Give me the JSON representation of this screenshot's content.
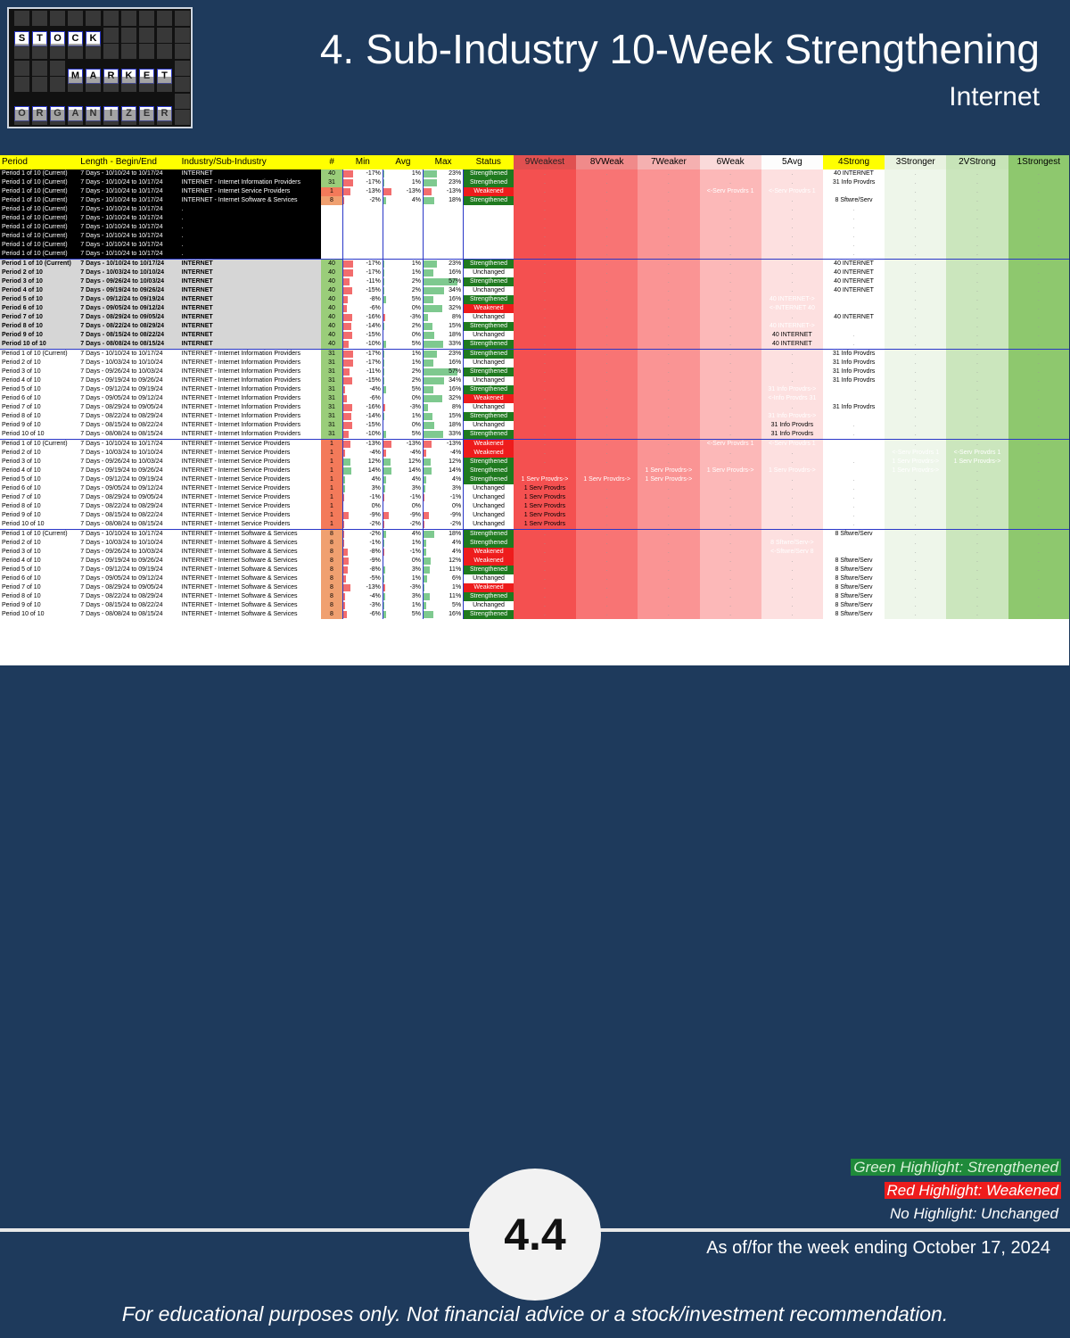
{
  "header": {
    "title": "4. Sub-Industry 10-Week Strengthening",
    "subtitle": "Internet",
    "logo_words": [
      "STOCK",
      "MARKET",
      "ORGANIZER"
    ]
  },
  "table": {
    "columns": [
      "Period",
      "Length - Begin/End",
      "Industry/Sub-Industry",
      "#",
      "Min",
      "Avg",
      "Max",
      "Status",
      "9Weakest",
      "8VWeak",
      "7Weaker",
      "6Weak",
      "5Avg",
      "4Strong",
      "3Stronger",
      "2VStrong",
      "1Strongest"
    ],
    "rows": [
      {
        "p": "Period 1 of 10 (Current)",
        "l": "7 Days - 10/10/24 to 10/17/24",
        "i": "INTERNET",
        "n": "40",
        "mn": "-17%",
        "av": "1%",
        "mx": "23%",
        "s": "Strengthened",
        "z": {
          "4": "40 INTERNET"
        },
        "g": "blk"
      },
      {
        "p": "Period 1 of 10 (Current)",
        "l": "7 Days - 10/10/24 to 10/17/24",
        "i": "INTERNET - Internet Information Providers",
        "n": "31",
        "mn": "-17%",
        "av": "1%",
        "mx": "23%",
        "s": "Strengthened",
        "z": {
          "4": "31 Info Provdrs"
        },
        "g": "blk"
      },
      {
        "p": "Period 1 of 10 (Current)",
        "l": "7 Days - 10/10/24 to 10/17/24",
        "i": "INTERNET - Internet Service Providers",
        "n": "1",
        "mn": "-13%",
        "av": "-13%",
        "mx": "-13%",
        "s": "Weakened",
        "z": {
          "6": "<-Serv Provdrs 1|r",
          "5": "<-Serv Provdrs 1|r",
          "4": "<-Serv Provdrs 1|r"
        },
        "g": "blk"
      },
      {
        "p": "Period 1 of 10 (Current)",
        "l": "7 Days - 10/10/24 to 10/17/24",
        "i": "INTERNET - Internet Software & Services",
        "n": "8",
        "mn": "-2%",
        "av": "4%",
        "mx": "18%",
        "s": "Strengthened",
        "z": {
          "4": "8 Sftwre/Serv"
        },
        "g": "blk"
      },
      {
        "p": "Period 1 of 10 (Current)",
        "l": "7 Days - 10/10/24 to 10/17/24",
        "i": ".",
        "n": "",
        "mn": "",
        "av": "",
        "mx": "",
        "s": "",
        "z": {},
        "g": "blk"
      },
      {
        "p": "Period 1 of 10 (Current)",
        "l": "7 Days - 10/10/24 to 10/17/24",
        "i": ".",
        "n": "",
        "mn": "",
        "av": "",
        "mx": "",
        "s": "",
        "z": {},
        "g": "blk"
      },
      {
        "p": "Period 1 of 10 (Current)",
        "l": "7 Days - 10/10/24 to 10/17/24",
        "i": ".",
        "n": "",
        "mn": "",
        "av": "",
        "mx": "",
        "s": "",
        "z": {},
        "g": "blk"
      },
      {
        "p": "Period 1 of 10 (Current)",
        "l": "7 Days - 10/10/24 to 10/17/24",
        "i": ".",
        "n": "",
        "mn": "",
        "av": "",
        "mx": "",
        "s": "",
        "z": {},
        "g": "blk"
      },
      {
        "p": "Period 1 of 10 (Current)",
        "l": "7 Days - 10/10/24 to 10/17/24",
        "i": ".",
        "n": "",
        "mn": "",
        "av": "",
        "mx": "",
        "s": "",
        "z": {},
        "g": "blk"
      },
      {
        "p": "Period 1 of 10 (Current)",
        "l": "7 Days - 10/10/24 to 10/17/24",
        "i": ".",
        "n": "",
        "mn": "",
        "av": "",
        "mx": "",
        "s": "",
        "z": {},
        "g": "blk"
      },
      {
        "p": "Period 1 of 10 (Current)",
        "l": "7 Days - 10/10/24 to 10/17/24",
        "i": "INTERNET",
        "n": "40",
        "mn": "-17%",
        "av": "1%",
        "mx": "23%",
        "s": "Strengthened",
        "z": {
          "4": "40 INTERNET"
        },
        "g": "gry",
        "sep": true
      },
      {
        "p": "Period 2 of 10",
        "l": "7 Days - 10/03/24 to 10/10/24",
        "i": "INTERNET",
        "n": "40",
        "mn": "-17%",
        "av": "1%",
        "mx": "16%",
        "s": "Unchanged",
        "z": {
          "4": "40 INTERNET"
        },
        "g": "gry"
      },
      {
        "p": "Period 3 of 10",
        "l": "7 Days - 09/26/24 to 10/03/24",
        "i": "INTERNET",
        "n": "40",
        "mn": "-11%",
        "av": "2%",
        "mx": "57%",
        "s": "Strengthened",
        "z": {
          "4": "40 INTERNET"
        },
        "g": "gry"
      },
      {
        "p": "Period 4 of 10",
        "l": "7 Days - 09/19/24 to 09/26/24",
        "i": "INTERNET",
        "n": "40",
        "mn": "-15%",
        "av": "2%",
        "mx": "34%",
        "s": "Unchanged",
        "z": {
          "4": "40 INTERNET"
        },
        "g": "gry"
      },
      {
        "p": "Period 5 of 10",
        "l": "7 Days - 09/12/24 to 09/19/24",
        "i": "INTERNET",
        "n": "40",
        "mn": "-8%",
        "av": "5%",
        "mx": "16%",
        "s": "Strengthened",
        "z": {
          "5": "40 INTERNET->|g",
          "4": "40 INTERNET->|g"
        },
        "g": "gry"
      },
      {
        "p": "Period 6 of 10",
        "l": "7 Days - 09/05/24 to 09/12/24",
        "i": "INTERNET",
        "n": "40",
        "mn": "-6%",
        "av": "0%",
        "mx": "32%",
        "s": "Weakened",
        "z": {
          "5": "<-INTERNET 40|r",
          "4": "<-INTERNET 40|r"
        },
        "g": "gry"
      },
      {
        "p": "Period 7 of 10",
        "l": "7 Days - 08/29/24 to 09/05/24",
        "i": "INTERNET",
        "n": "40",
        "mn": "-16%",
        "av": "-3%",
        "mx": "8%",
        "s": "Unchanged",
        "z": {
          "4": "40 INTERNET"
        },
        "g": "gry"
      },
      {
        "p": "Period 8 of 10",
        "l": "7 Days - 08/22/24 to 08/29/24",
        "i": "INTERNET",
        "n": "40",
        "mn": "-14%",
        "av": "2%",
        "mx": "15%",
        "s": "Strengthened",
        "z": {
          "5": "40 INTERNET->|g",
          "4": "40 INTERNET->|g"
        },
        "g": "gry"
      },
      {
        "p": "Period 9 of 10",
        "l": "7 Days - 08/15/24 to 08/22/24",
        "i": "INTERNET",
        "n": "40",
        "mn": "-15%",
        "av": "0%",
        "mx": "18%",
        "s": "Unchanged",
        "z": {
          "5": "40 INTERNET"
        },
        "g": "gry"
      },
      {
        "p": "Period 10 of 10",
        "l": "7 Days - 08/08/24 to 08/15/24",
        "i": "INTERNET",
        "n": "40",
        "mn": "-10%",
        "av": "5%",
        "mx": "33%",
        "s": "Strengthened",
        "z": {
          "5": "40 INTERNET"
        },
        "g": "gry"
      },
      {
        "p": "Period 1 of 10 (Current)",
        "l": "7 Days - 10/10/24 to 10/17/24",
        "i": "INTERNET - Internet Information Providers",
        "n": "31",
        "mn": "-17%",
        "av": "1%",
        "mx": "23%",
        "s": "Strengthened",
        "z": {
          "4": "31 Info Provdrs"
        },
        "g": "wht",
        "sep": true
      },
      {
        "p": "Period 2 of 10",
        "l": "7 Days - 10/03/24 to 10/10/24",
        "i": "INTERNET - Internet Information Providers",
        "n": "31",
        "mn": "-17%",
        "av": "1%",
        "mx": "16%",
        "s": "Unchanged",
        "z": {
          "4": "31 Info Provdrs"
        },
        "g": "wht"
      },
      {
        "p": "Period 3 of 10",
        "l": "7 Days - 09/26/24 to 10/03/24",
        "i": "INTERNET - Internet Information Providers",
        "n": "31",
        "mn": "-11%",
        "av": "2%",
        "mx": "57%",
        "s": "Strengthened",
        "z": {
          "4": "31 Info Provdrs"
        },
        "g": "wht"
      },
      {
        "p": "Period 4 of 10",
        "l": "7 Days - 09/19/24 to 09/26/24",
        "i": "INTERNET - Internet Information Providers",
        "n": "31",
        "mn": "-15%",
        "av": "2%",
        "mx": "34%",
        "s": "Unchanged",
        "z": {
          "4": "31 Info Provdrs"
        },
        "g": "wht"
      },
      {
        "p": "Period 5 of 10",
        "l": "7 Days - 09/12/24 to 09/19/24",
        "i": "INTERNET - Internet Information Providers",
        "n": "31",
        "mn": "-4%",
        "av": "5%",
        "mx": "16%",
        "s": "Strengthened",
        "z": {
          "5": "31 Info Provdrs->|g",
          "4": "31 Info Provdrs->|g"
        },
        "g": "wht"
      },
      {
        "p": "Period 6 of 10",
        "l": "7 Days - 09/05/24 to 09/12/24",
        "i": "INTERNET - Internet Information Providers",
        "n": "31",
        "mn": "-6%",
        "av": "0%",
        "mx": "32%",
        "s": "Weakened",
        "z": {
          "5": "<-Info Provdrs 31|r",
          "4": "<-Info Provdrs 31|r"
        },
        "g": "wht"
      },
      {
        "p": "Period 7 of 10",
        "l": "7 Days - 08/29/24 to 09/05/24",
        "i": "INTERNET - Internet Information Providers",
        "n": "31",
        "mn": "-16%",
        "av": "-3%",
        "mx": "8%",
        "s": "Unchanged",
        "z": {
          "4": "31 Info Provdrs"
        },
        "g": "wht"
      },
      {
        "p": "Period 8 of 10",
        "l": "7 Days - 08/22/24 to 08/29/24",
        "i": "INTERNET - Internet Information Providers",
        "n": "31",
        "mn": "-14%",
        "av": "1%",
        "mx": "15%",
        "s": "Strengthened",
        "z": {
          "5": "31 Info Provdrs->|g",
          "4": "31 Info Provdrs->|g"
        },
        "g": "wht"
      },
      {
        "p": "Period 9 of 10",
        "l": "7 Days - 08/15/24 to 08/22/24",
        "i": "INTERNET - Internet Information Providers",
        "n": "31",
        "mn": "-15%",
        "av": "0%",
        "mx": "18%",
        "s": "Unchanged",
        "z": {
          "5": "31 Info Provdrs"
        },
        "g": "wht"
      },
      {
        "p": "Period 10 of 10",
        "l": "7 Days - 08/08/24 to 08/15/24",
        "i": "INTERNET - Internet Information Providers",
        "n": "31",
        "mn": "-10%",
        "av": "5%",
        "mx": "33%",
        "s": "Strengthened",
        "z": {
          "5": "31 Info Provdrs"
        },
        "g": "wht"
      },
      {
        "p": "Period 1 of 10 (Current)",
        "l": "7 Days - 10/10/24 to 10/17/24",
        "i": "INTERNET - Internet Service Providers",
        "n": "1",
        "mn": "-13%",
        "av": "-13%",
        "mx": "-13%",
        "s": "Weakened",
        "z": {
          "6": "<-Serv Provdrs 1|r",
          "5": "<-Serv Provdrs 1|r",
          "4": "<-Serv Provdrs 1|r"
        },
        "g": "wht",
        "sep": true
      },
      {
        "p": "Period 2 of 10",
        "l": "7 Days - 10/03/24 to 10/10/24",
        "i": "INTERNET - Internet Service Providers",
        "n": "1",
        "mn": "-4%",
        "av": "-4%",
        "mx": "-4%",
        "s": "Weakened",
        "z": {
          "4": "<-Serv Provdrs 1|r",
          "3": "<-Serv Provdrs 1|b",
          "2": "<-Serv Provdrs 1|b"
        },
        "g": "wht"
      },
      {
        "p": "Period 3 of 10",
        "l": "7 Days - 09/26/24 to 10/03/24",
        "i": "INTERNET - Internet Service Providers",
        "n": "1",
        "mn": "12%",
        "av": "12%",
        "mx": "12%",
        "s": "Strengthened",
        "z": {
          "3": "1 Serv Provdrs->|g",
          "2": "1 Serv Provdrs->|g"
        },
        "g": "wht"
      },
      {
        "p": "Period 4 of 10",
        "l": "7 Days - 09/19/24 to 09/26/24",
        "i": "INTERNET - Internet Service Providers",
        "n": "1",
        "mn": "14%",
        "av": "14%",
        "mx": "14%",
        "s": "Strengthened",
        "z": {
          "7": "1 Serv Provdrs->|g",
          "6": "1 Serv Provdrs->|g",
          "5": "1 Serv Provdrs->|g",
          "4": "1 Serv Provdrs->|g",
          "3": "1 Serv Provdrs->|g"
        },
        "g": "wht"
      },
      {
        "p": "Period 5 of 10",
        "l": "7 Days - 09/12/24 to 09/19/24",
        "i": "INTERNET - Internet Service Providers",
        "n": "1",
        "mn": "4%",
        "av": "4%",
        "mx": "4%",
        "s": "Strengthened",
        "z": {
          "9": "1 Serv Provdrs->|b",
          "8": "1 Serv Provdrs->|b",
          "7": "1 Serv Provdrs->|b"
        },
        "g": "wht"
      },
      {
        "p": "Period 6 of 10",
        "l": "7 Days - 09/05/24 to 09/12/24",
        "i": "INTERNET - Internet Service Providers",
        "n": "1",
        "mn": "3%",
        "av": "3%",
        "mx": "3%",
        "s": "Unchanged",
        "z": {
          "9": "1 Serv Provdrs"
        },
        "g": "wht"
      },
      {
        "p": "Period 7 of 10",
        "l": "7 Days - 08/29/24 to 09/05/24",
        "i": "INTERNET - Internet Service Providers",
        "n": "1",
        "mn": "-1%",
        "av": "-1%",
        "mx": "-1%",
        "s": "Unchanged",
        "z": {
          "9": "1 Serv Provdrs"
        },
        "g": "wht"
      },
      {
        "p": "Period 8 of 10",
        "l": "7 Days - 08/22/24 to 08/29/24",
        "i": "INTERNET - Internet Service Providers",
        "n": "1",
        "mn": "0%",
        "av": "0%",
        "mx": "0%",
        "s": "Unchanged",
        "z": {
          "9": "1 Serv Provdrs"
        },
        "g": "wht"
      },
      {
        "p": "Period 9 of 10",
        "l": "7 Days - 08/15/24 to 08/22/24",
        "i": "INTERNET - Internet Service Providers",
        "n": "1",
        "mn": "-9%",
        "av": "-9%",
        "mx": "-9%",
        "s": "Unchanged",
        "z": {
          "9": "1 Serv Provdrs"
        },
        "g": "wht"
      },
      {
        "p": "Period 10 of 10",
        "l": "7 Days - 08/08/24 to 08/15/24",
        "i": "INTERNET - Internet Service Providers",
        "n": "1",
        "mn": "-2%",
        "av": "-2%",
        "mx": "-2%",
        "s": "Unchanged",
        "z": {
          "9": "1 Serv Provdrs"
        },
        "g": "wht"
      },
      {
        "p": "Period 1 of 10 (Current)",
        "l": "7 Days - 10/10/24 to 10/17/24",
        "i": "INTERNET - Internet Software & Services",
        "n": "8",
        "mn": "-2%",
        "av": "4%",
        "mx": "18%",
        "s": "Strengthened",
        "z": {
          "4": "8 Sftwre/Serv"
        },
        "g": "wht",
        "sep": true
      },
      {
        "p": "Period 2 of 10",
        "l": "7 Days - 10/03/24 to 10/10/24",
        "i": "INTERNET - Internet Software & Services",
        "n": "8",
        "mn": "-1%",
        "av": "1%",
        "mx": "4%",
        "s": "Strengthened",
        "z": {
          "5": "8 Sftwre/Serv->|g",
          "4": "8 Sftwre/Serv->|g"
        },
        "g": "wht"
      },
      {
        "p": "Period 3 of 10",
        "l": "7 Days - 09/26/24 to 10/03/24",
        "i": "INTERNET - Internet Software & Services",
        "n": "8",
        "mn": "-8%",
        "av": "-1%",
        "mx": "4%",
        "s": "Weakened",
        "z": {
          "5": "<-Sftwre/Serv 8|r",
          "4": "<-Sftwre/Serv 8|r"
        },
        "g": "wht"
      },
      {
        "p": "Period 4 of 10",
        "l": "7 Days - 09/19/24 to 09/26/24",
        "i": "INTERNET - Internet Software & Services",
        "n": "8",
        "mn": "-9%",
        "av": "0%",
        "mx": "12%",
        "s": "Weakened",
        "z": {
          "4": "8 Sftwre/Serv"
        },
        "g": "wht"
      },
      {
        "p": "Period 5 of 10",
        "l": "7 Days - 09/12/24 to 09/19/24",
        "i": "INTERNET - Internet Software & Services",
        "n": "8",
        "mn": "-8%",
        "av": "3%",
        "mx": "11%",
        "s": "Strengthened",
        "z": {
          "4": "8 Sftwre/Serv"
        },
        "g": "wht"
      },
      {
        "p": "Period 6 of 10",
        "l": "7 Days - 09/05/24 to 09/12/24",
        "i": "INTERNET - Internet Software & Services",
        "n": "8",
        "mn": "-5%",
        "av": "1%",
        "mx": "6%",
        "s": "Unchanged",
        "z": {
          "4": "8 Sftwre/Serv"
        },
        "g": "wht"
      },
      {
        "p": "Period 7 of 10",
        "l": "7 Days - 08/29/24 to 09/05/24",
        "i": "INTERNET - Internet Software & Services",
        "n": "8",
        "mn": "-13%",
        "av": "-3%",
        "mx": "1%",
        "s": "Weakened",
        "z": {
          "4": "8 Sftwre/Serv"
        },
        "g": "wht"
      },
      {
        "p": "Period 8 of 10",
        "l": "7 Days - 08/22/24 to 08/29/24",
        "i": "INTERNET - Internet Software & Services",
        "n": "8",
        "mn": "-4%",
        "av": "3%",
        "mx": "11%",
        "s": "Strengthened",
        "z": {
          "4": "8 Sftwre/Serv"
        },
        "g": "wht"
      },
      {
        "p": "Period 9 of 10",
        "l": "7 Days - 08/15/24 to 08/22/24",
        "i": "INTERNET - Internet Software & Services",
        "n": "8",
        "mn": "-3%",
        "av": "1%",
        "mx": "5%",
        "s": "Unchanged",
        "z": {
          "4": "8 Sftwre/Serv"
        },
        "g": "wht"
      },
      {
        "p": "Period 10 of 10",
        "l": "7 Days - 08/08/24 to 08/15/24",
        "i": "INTERNET - Internet Software & Services",
        "n": "8",
        "mn": "-6%",
        "av": "5%",
        "mx": "16%",
        "s": "Strengthened",
        "z": {
          "4": "8 Sftwre/Serv"
        },
        "g": "wht"
      }
    ]
  },
  "legend": {
    "green": "Green Highlight: Strengthened",
    "red": "Red Highlight: Weakened",
    "none": "No Highlight: Unchanged"
  },
  "badge": "4.4",
  "as_of": "As of/for the week ending October 17, 2024",
  "disclaimer": "For educational purposes only. Not financial advice or a stock/investment recommendation.",
  "colors": {
    "background": "#1e3a5c",
    "strengthened": "#1f7a1f",
    "weakened": "#ee1c1c",
    "header": "#ffff00"
  }
}
